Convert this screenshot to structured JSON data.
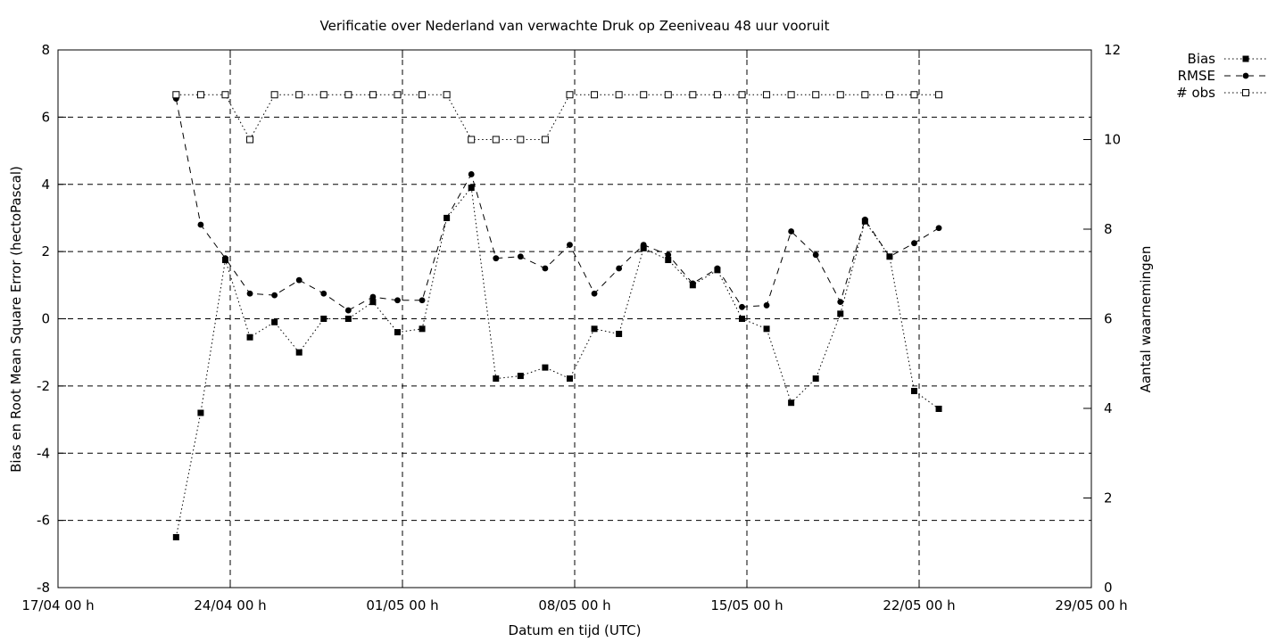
{
  "chart_data": {
    "type": "line",
    "title": "Verificatie over Nederland van verwachte Druk op Zeeniveau 48 uur vooruit",
    "xlabel": "Datum en tijd (UTC)",
    "ylabel": "Bias en Root Mean Square Error (hectoPascal)",
    "y2label": "Aantal waarnemingen",
    "xlim": [
      0,
      42
    ],
    "ylim": [
      -8,
      8
    ],
    "y2lim": [
      0,
      12
    ],
    "grid": true,
    "legend_position": "top-right, outside plot",
    "x_ticks": [
      {
        "x": 0,
        "label": "17/04 00 h"
      },
      {
        "x": 7,
        "label": "24/04 00 h"
      },
      {
        "x": 14,
        "label": "01/05 00 h"
      },
      {
        "x": 21,
        "label": "08/05 00 h"
      },
      {
        "x": 28,
        "label": "15/05 00 h"
      },
      {
        "x": 35,
        "label": "22/05 00 h"
      },
      {
        "x": 42,
        "label": "29/05 00 h"
      }
    ],
    "y_ticks": [
      "-8",
      "-6",
      "-4",
      "-2",
      "0",
      "2",
      "4",
      "6",
      "8"
    ],
    "y2_ticks": [
      "0",
      "2",
      "4",
      "6",
      "8",
      "10",
      "12"
    ],
    "x": [
      4.8,
      5.8,
      6.8,
      7.8,
      8.8,
      9.8,
      10.8,
      11.8,
      12.8,
      13.8,
      14.8,
      15.8,
      16.8,
      17.8,
      18.8,
      19.8,
      20.8,
      21.8,
      22.8,
      23.8,
      24.8,
      25.8,
      26.8,
      27.8,
      28.8,
      29.8,
      30.8,
      31.8,
      32.8,
      33.8,
      34.8,
      35.8
    ],
    "series": [
      {
        "name": "Bias",
        "axis": "left",
        "line_style": "dotted",
        "marker": "filled-square",
        "values": [
          -6.5,
          -2.8,
          1.75,
          -0.55,
          -0.1,
          -1.0,
          0.0,
          0.0,
          0.5,
          -0.4,
          -0.3,
          3.0,
          3.9,
          -1.78,
          -1.7,
          -1.45,
          -1.78,
          -0.3,
          -0.45,
          2.1,
          1.75,
          1.0,
          1.45,
          0.0,
          -0.3,
          -2.5,
          -1.78,
          0.15,
          2.9,
          1.85,
          -2.15,
          -2.68
        ]
      },
      {
        "name": "RMSE",
        "axis": "left",
        "line_style": "dashed",
        "marker": "filled-circle",
        "values": [
          6.55,
          2.8,
          1.8,
          0.75,
          0.7,
          1.15,
          0.75,
          0.25,
          0.65,
          0.55,
          0.55,
          3.0,
          4.3,
          1.8,
          1.85,
          1.5,
          2.2,
          0.75,
          1.5,
          2.2,
          1.9,
          1.05,
          1.5,
          0.35,
          0.4,
          2.6,
          1.9,
          0.5,
          2.95,
          1.85,
          2.25,
          2.7
        ]
      },
      {
        "name": "# obs",
        "axis": "right",
        "line_style": "dotted",
        "marker": "open-square",
        "values": [
          11,
          11,
          11,
          10,
          11,
          11,
          11,
          11,
          11,
          11,
          11,
          11,
          10,
          10,
          10,
          10,
          11,
          11,
          11,
          11,
          11,
          11,
          11,
          11,
          11,
          11,
          11,
          11,
          11,
          11,
          11,
          11
        ]
      }
    ]
  }
}
